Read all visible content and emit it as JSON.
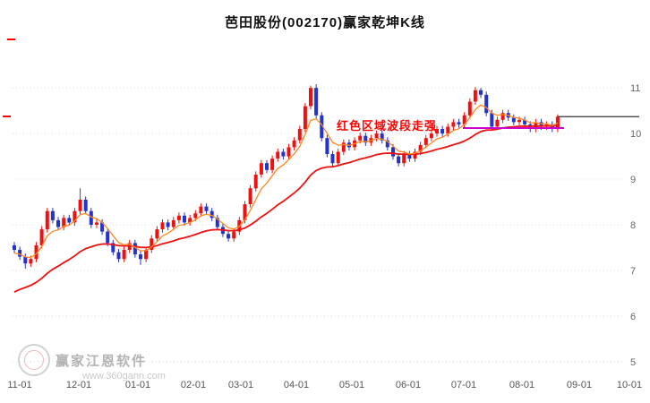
{
  "header": {
    "title": "芭田股份(002170)赢家乾坤K线"
  },
  "annotation": {
    "text": "红色区域波段走强",
    "color": "#ff0000"
  },
  "watermark": {
    "brand": "赢家江恩软件",
    "site": "www.360gann.com"
  },
  "chart_data": {
    "type": "candlestick",
    "title": "芭田股份(002170)赢家乾坤K线",
    "x_labels": [
      "11-01",
      "12-01",
      "01-01",
      "02-01",
      "03-01",
      "04-01",
      "05-01",
      "06-01",
      "07-01",
      "08-01",
      "09-01",
      "10-01"
    ],
    "y_ticks": [
      11,
      10,
      9,
      8,
      7,
      6,
      5
    ],
    "ylim": [
      4.78,
      11.2
    ],
    "grid": "horizontal-dotted",
    "legend": "none",
    "last_price": 10.37,
    "wave_line": {
      "price": 10.12
    },
    "colors": {
      "up": "#ee1111",
      "down": "#2333cc",
      "ma_short": "#ff8822",
      "ma_long": "#ee1111",
      "wave": "#cc00cc",
      "last_price_line": "#333333",
      "grid": "#d8d8d8",
      "axis_text": "#666666"
    },
    "candles": [
      [
        7.55,
        7.62,
        7.38,
        7.45
      ],
      [
        7.45,
        7.52,
        7.23,
        7.3
      ],
      [
        7.3,
        7.37,
        7.04,
        7.15
      ],
      [
        7.15,
        7.32,
        7.08,
        7.25
      ],
      [
        7.25,
        7.62,
        7.18,
        7.55
      ],
      [
        7.55,
        7.97,
        7.48,
        7.9
      ],
      [
        7.9,
        8.37,
        7.83,
        8.3
      ],
      [
        8.3,
        8.37,
        8.03,
        8.1
      ],
      [
        8.1,
        8.17,
        7.88,
        7.95
      ],
      [
        7.95,
        8.22,
        7.88,
        8.15
      ],
      [
        8.15,
        8.22,
        7.98,
        8.05
      ],
      [
        8.05,
        8.37,
        7.98,
        8.3
      ],
      [
        8.3,
        8.8,
        8.23,
        8.55
      ],
      [
        8.55,
        8.62,
        8.23,
        8.3
      ],
      [
        8.3,
        8.37,
        7.93,
        8.0
      ],
      [
        8.0,
        8.12,
        7.93,
        8.05
      ],
      [
        8.05,
        8.12,
        7.78,
        7.85
      ],
      [
        7.85,
        7.92,
        7.53,
        7.6
      ],
      [
        7.6,
        7.67,
        7.33,
        7.4
      ],
      [
        7.4,
        7.47,
        7.18,
        7.25
      ],
      [
        7.25,
        7.52,
        7.18,
        7.45
      ],
      [
        7.45,
        7.67,
        7.38,
        7.6
      ],
      [
        7.6,
        7.67,
        7.28,
        7.35
      ],
      [
        7.35,
        7.42,
        7.12,
        7.25
      ],
      [
        7.25,
        7.52,
        7.18,
        7.45
      ],
      [
        7.45,
        7.77,
        7.38,
        7.7
      ],
      [
        7.7,
        7.97,
        7.63,
        7.9
      ],
      [
        7.9,
        8.12,
        7.83,
        8.05
      ],
      [
        8.05,
        8.12,
        7.88,
        7.95
      ],
      [
        7.95,
        8.17,
        7.88,
        8.1
      ],
      [
        8.1,
        8.27,
        8.03,
        8.2
      ],
      [
        8.2,
        8.27,
        7.98,
        8.05
      ],
      [
        8.05,
        8.22,
        7.98,
        8.15
      ],
      [
        8.15,
        8.32,
        8.08,
        8.25
      ],
      [
        8.25,
        8.47,
        8.18,
        8.4
      ],
      [
        8.4,
        8.47,
        8.23,
        8.3
      ],
      [
        8.3,
        8.37,
        8.08,
        8.15
      ],
      [
        8.15,
        8.22,
        7.88,
        7.95
      ],
      [
        7.95,
        8.02,
        7.73,
        7.8
      ],
      [
        7.8,
        7.87,
        7.63,
        7.7
      ],
      [
        7.7,
        7.92,
        7.63,
        7.85
      ],
      [
        7.85,
        8.17,
        7.78,
        8.1
      ],
      [
        8.1,
        8.52,
        8.03,
        8.45
      ],
      [
        8.45,
        8.87,
        8.38,
        8.8
      ],
      [
        8.8,
        9.17,
        8.73,
        9.1
      ],
      [
        9.1,
        9.42,
        9.03,
        9.35
      ],
      [
        9.35,
        9.42,
        9.13,
        9.2
      ],
      [
        9.2,
        9.52,
        9.13,
        9.45
      ],
      [
        9.45,
        9.67,
        9.38,
        9.6
      ],
      [
        9.6,
        9.67,
        9.43,
        9.5
      ],
      [
        9.5,
        9.77,
        9.43,
        9.7
      ],
      [
        9.7,
        9.92,
        9.63,
        9.85
      ],
      [
        9.85,
        10.17,
        9.78,
        10.1
      ],
      [
        10.1,
        10.67,
        10.03,
        10.6
      ],
      [
        10.6,
        11.05,
        10.53,
        11.0
      ],
      [
        11.0,
        11.08,
        10.33,
        10.4
      ],
      [
        10.4,
        10.47,
        9.83,
        9.9
      ],
      [
        9.9,
        9.97,
        9.48,
        9.55
      ],
      [
        9.55,
        9.62,
        9.28,
        9.35
      ],
      [
        9.35,
        9.67,
        9.28,
        9.6
      ],
      [
        9.6,
        9.87,
        9.53,
        9.8
      ],
      [
        9.8,
        9.87,
        9.63,
        9.7
      ],
      [
        9.7,
        9.92,
        9.63,
        9.85
      ],
      [
        9.85,
        10.02,
        9.78,
        9.95
      ],
      [
        9.95,
        10.02,
        9.73,
        9.8
      ],
      [
        9.8,
        9.97,
        9.73,
        9.9
      ],
      [
        9.9,
        10.07,
        9.83,
        10.0
      ],
      [
        10.0,
        10.07,
        9.78,
        9.85
      ],
      [
        9.85,
        9.92,
        9.63,
        9.7
      ],
      [
        9.7,
        9.77,
        9.43,
        9.5
      ],
      [
        9.5,
        9.57,
        9.28,
        9.35
      ],
      [
        9.35,
        9.62,
        9.28,
        9.55
      ],
      [
        9.55,
        9.62,
        9.38,
        9.45
      ],
      [
        9.45,
        9.67,
        9.38,
        9.6
      ],
      [
        9.6,
        9.82,
        9.53,
        9.75
      ],
      [
        9.75,
        9.97,
        9.68,
        9.9
      ],
      [
        9.9,
        10.07,
        9.83,
        10.0
      ],
      [
        10.0,
        10.17,
        9.93,
        10.1
      ],
      [
        10.1,
        10.17,
        9.93,
        10.0
      ],
      [
        10.0,
        10.22,
        9.93,
        10.15
      ],
      [
        10.15,
        10.32,
        10.08,
        10.25
      ],
      [
        10.25,
        10.32,
        10.13,
        10.2
      ],
      [
        10.2,
        10.47,
        10.13,
        10.4
      ],
      [
        10.4,
        10.77,
        10.33,
        10.7
      ],
      [
        10.7,
        11.02,
        10.63,
        10.95
      ],
      [
        10.95,
        11.0,
        10.78,
        10.85
      ],
      [
        10.85,
        10.92,
        10.38,
        10.45
      ],
      [
        10.45,
        10.52,
        10.08,
        10.15
      ],
      [
        10.15,
        10.37,
        10.08,
        10.3
      ],
      [
        10.3,
        10.52,
        10.23,
        10.45
      ],
      [
        10.45,
        10.52,
        10.28,
        10.35
      ],
      [
        10.35,
        10.42,
        10.18,
        10.25
      ],
      [
        10.25,
        10.37,
        10.18,
        10.3
      ],
      [
        10.3,
        10.37,
        10.13,
        10.2
      ],
      [
        10.2,
        10.27,
        10.03,
        10.1
      ],
      [
        10.1,
        10.32,
        10.03,
        10.25
      ],
      [
        10.25,
        10.32,
        10.08,
        10.15
      ],
      [
        10.15,
        10.27,
        10.08,
        10.2
      ],
      [
        10.2,
        10.27,
        10.03,
        10.1
      ],
      [
        10.1,
        10.42,
        10.03,
        10.37
      ]
    ]
  }
}
